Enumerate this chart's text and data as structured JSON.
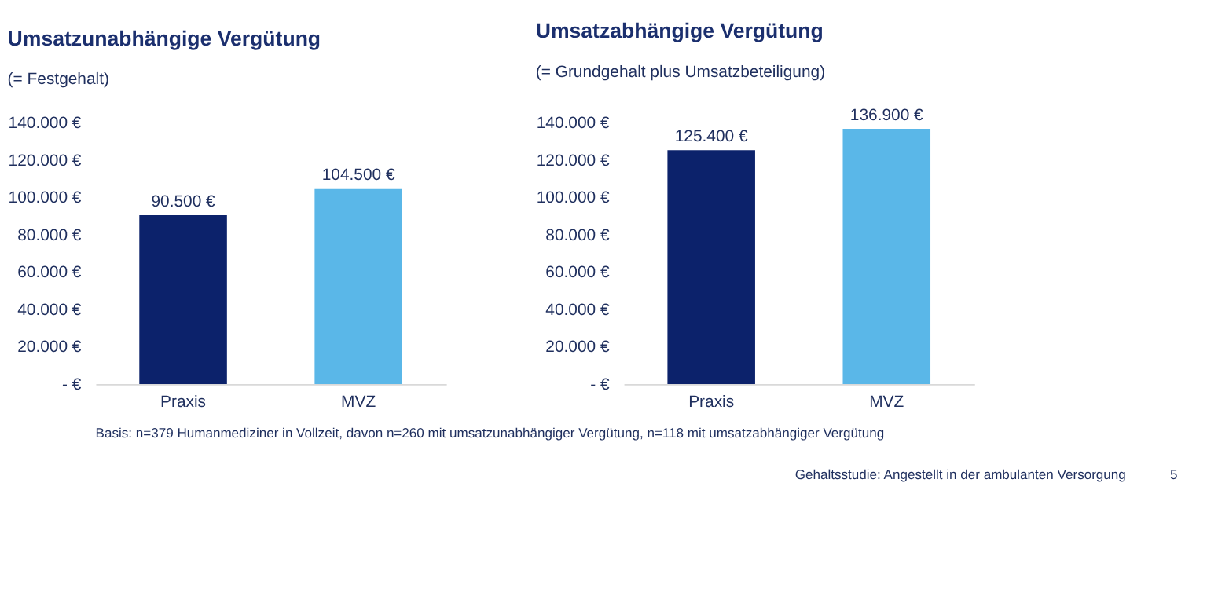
{
  "chart_data": [
    {
      "type": "bar",
      "title": "Umsatzunabhängige Vergütung",
      "subtitle": "(= Festgehalt)",
      "categories": [
        "Praxis",
        "MVZ"
      ],
      "values": [
        90500,
        104500
      ],
      "colors": [
        "#0c226b",
        "#5ab7e8"
      ],
      "value_labels": [
        "90.500 €",
        "104.500 €"
      ],
      "ylim": [
        0,
        140000
      ],
      "yticks": [
        {
          "value": 0,
          "label": "-  €"
        },
        {
          "value": 20000,
          "label": "20.000 €"
        },
        {
          "value": 40000,
          "label": "40.000 €"
        },
        {
          "value": 60000,
          "label": "60.000 €"
        },
        {
          "value": 80000,
          "label": "80.000 €"
        },
        {
          "value": 100000,
          "label": "100.000 €"
        },
        {
          "value": 120000,
          "label": "120.000 €"
        },
        {
          "value": 140000,
          "label": "140.000 €"
        }
      ],
      "grid": false,
      "annotations": [
        "Basis: n=379 Humanmediziner in Vollzeit, davon n=260 mit umsatzunabhängiger Vergütung, n=118 mit umsatzabhängiger Vergütung"
      ]
    },
    {
      "type": "bar",
      "title": "Umsatzabhängige Vergütung",
      "subtitle": "(= Grundgehalt plus Umsatzbeteiligung)",
      "categories": [
        "Praxis",
        "MVZ"
      ],
      "values": [
        125400,
        136900
      ],
      "colors": [
        "#0c226b",
        "#5ab7e8"
      ],
      "value_labels": [
        "125.400 €",
        "136.900 €"
      ],
      "ylim": [
        0,
        140000
      ],
      "yticks": [
        {
          "value": 0,
          "label": "-  €"
        },
        {
          "value": 20000,
          "label": "20.000 €"
        },
        {
          "value": 40000,
          "label": "40.000 €"
        },
        {
          "value": 60000,
          "label": "60.000 €"
        },
        {
          "value": 80000,
          "label": "80.000 €"
        },
        {
          "value": 100000,
          "label": "100.000 €"
        },
        {
          "value": 120000,
          "label": "120.000 €"
        },
        {
          "value": 140000,
          "label": "140.000 €"
        }
      ],
      "grid": false,
      "annotations": [
        "Gehaltsstudie: Angestellt in der ambulanten Versorgung",
        "5"
      ]
    }
  ]
}
